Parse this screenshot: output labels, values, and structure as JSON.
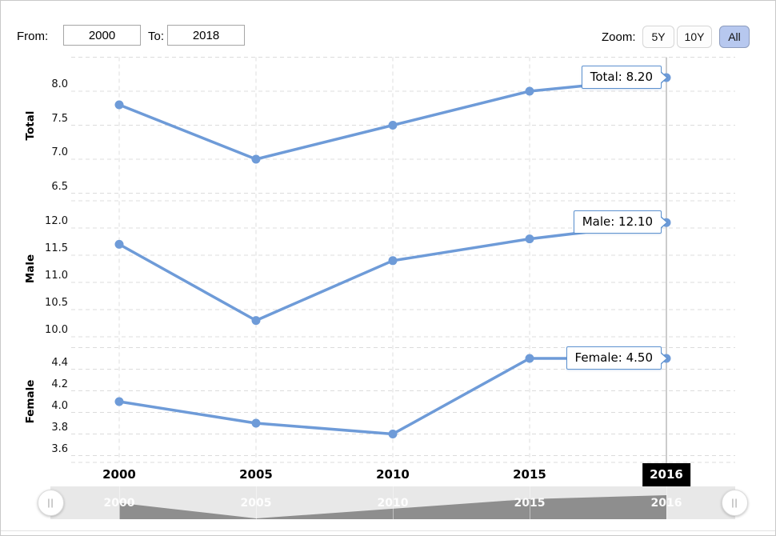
{
  "header": {
    "from_label": "From:",
    "from_value": "2000",
    "to_label": "To:",
    "to_value": "2018",
    "zoom_label": "Zoom:",
    "zoom_buttons": [
      {
        "label": "5Y",
        "active": false
      },
      {
        "label": "10Y",
        "active": false
      },
      {
        "label": "All",
        "active": true
      }
    ]
  },
  "colors": {
    "line": "#6e9bd8",
    "tooltip_border": "#5e92cf",
    "grid": "#dcdcdc",
    "crosshair": "#999999",
    "active_button_bg": "#b7c8ef",
    "navigator_track": "#e8e8e8",
    "navigator_area": "#8e8e8e",
    "crosshair_badge_bg": "#000000"
  },
  "xaxis": {
    "tick_labels": [
      "2000",
      "2005",
      "2010",
      "2015"
    ],
    "crosshair_label": "2016"
  },
  "chart_data": [
    {
      "type": "line",
      "name": "Total",
      "ylabel": "Total",
      "categories": [
        2000,
        2005,
        2010,
        2015,
        2016
      ],
      "values": [
        7.8,
        7.0,
        7.5,
        8.0,
        8.2
      ],
      "ytick_labels": [
        "8.0",
        "7.5",
        "7.0",
        "6.5"
      ],
      "grid_top_value": 8.5,
      "tooltip": "Total: 8.20"
    },
    {
      "type": "line",
      "name": "Male",
      "ylabel": "Male",
      "categories": [
        2000,
        2005,
        2010,
        2015,
        2016
      ],
      "values": [
        11.7,
        10.3,
        11.4,
        11.8,
        12.1
      ],
      "ytick_labels": [
        "12.0",
        "11.5",
        "11.0",
        "10.5",
        "10.0"
      ],
      "grid_top_value": 12.5,
      "tooltip": "Male: 12.10"
    },
    {
      "type": "line",
      "name": "Female",
      "ylabel": "Female",
      "categories": [
        2000,
        2005,
        2010,
        2015,
        2016
      ],
      "values": [
        4.1,
        3.9,
        3.8,
        4.5,
        4.5
      ],
      "ytick_labels": [
        "4.4",
        "4.2",
        "4.0",
        "3.8",
        "3.6"
      ],
      "grid_top_value": 4.6,
      "tooltip": "Female: 4.50"
    }
  ],
  "navigator": {
    "labels": [
      "2000",
      "2005",
      "2010",
      "2015",
      "2016"
    ],
    "series_values": [
      7.8,
      7.0,
      7.5,
      8.0,
      8.2
    ],
    "handle_icon": "||"
  }
}
